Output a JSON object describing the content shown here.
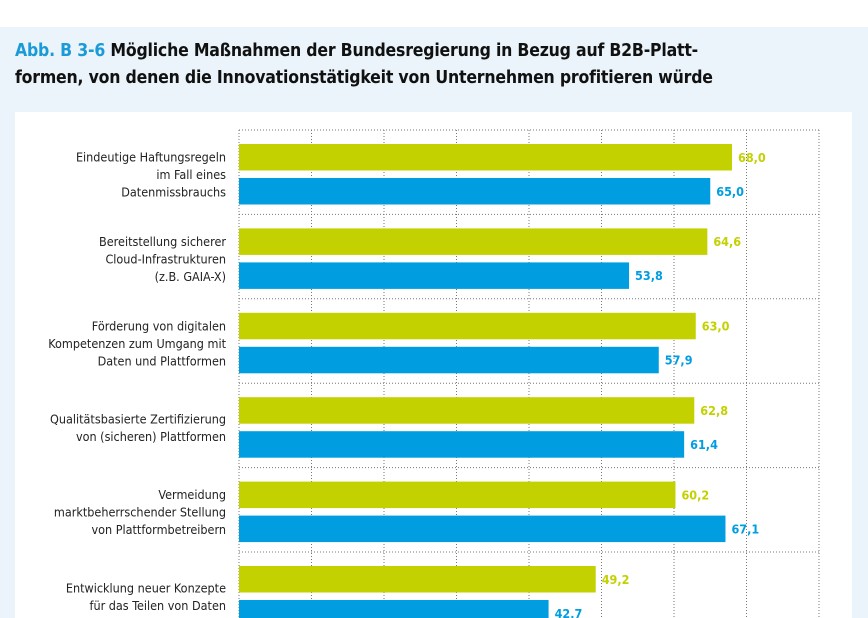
{
  "title": {
    "figure_id": "Abb. B 3-6",
    "line1": "Mögliche Maßnahmen der Bundesregierung in Bezug auf B2B-Platt-",
    "line2": "formen, von denen die Innovationstätigkeit von Unternehmen profitieren würde"
  },
  "colors": {
    "series1": "#c3d100",
    "series2": "#009ee0",
    "accent": "#1a9ad6",
    "background": "#eaf4fa"
  },
  "chart_data": {
    "type": "bar",
    "orientation": "horizontal",
    "title": "Abb. B 3-6 Mögliche Maßnahmen der Bundesregierung in Bezug auf B2B-Plattformen, von denen die Innovationstätigkeit von Unternehmen profitieren würde",
    "xlim": [
      0,
      80
    ],
    "x_grid_step": 10,
    "grid": true,
    "categories": [
      [
        "Eindeutige Haftungsregeln",
        "im Fall eines",
        "Datenmissbrauchs"
      ],
      [
        "Bereitstellung sicherer",
        "Cloud-Infrastrukturen",
        "(z.B. GAIA-X)"
      ],
      [
        "Förderung von digitalen",
        "Kompetenzen zum Umgang mit",
        "Daten und Plattformen"
      ],
      [
        "Qualitätsbasierte Zertifizierung",
        "von (sicheren) Plattformen"
      ],
      [
        "Vermeidung",
        "marktbeherrschender Stellung",
        "von Plattformbetreibern"
      ],
      [
        "Entwicklung neuer Konzepte",
        "für das Teilen von Daten"
      ]
    ],
    "series": [
      {
        "name": "series-green",
        "color": "#c3d100",
        "values": [
          68.0,
          64.6,
          63.0,
          62.8,
          60.2,
          49.2
        ],
        "labels": [
          "68,0",
          "64,6",
          "63,0",
          "62,8",
          "60,2",
          "49,2"
        ]
      },
      {
        "name": "series-blue",
        "color": "#009ee0",
        "values": [
          65.0,
          53.8,
          57.9,
          61.4,
          67.1,
          42.7
        ],
        "labels": [
          "65,0",
          "53,8",
          "57,9",
          "61,4",
          "67,1",
          "42,7"
        ]
      }
    ]
  }
}
